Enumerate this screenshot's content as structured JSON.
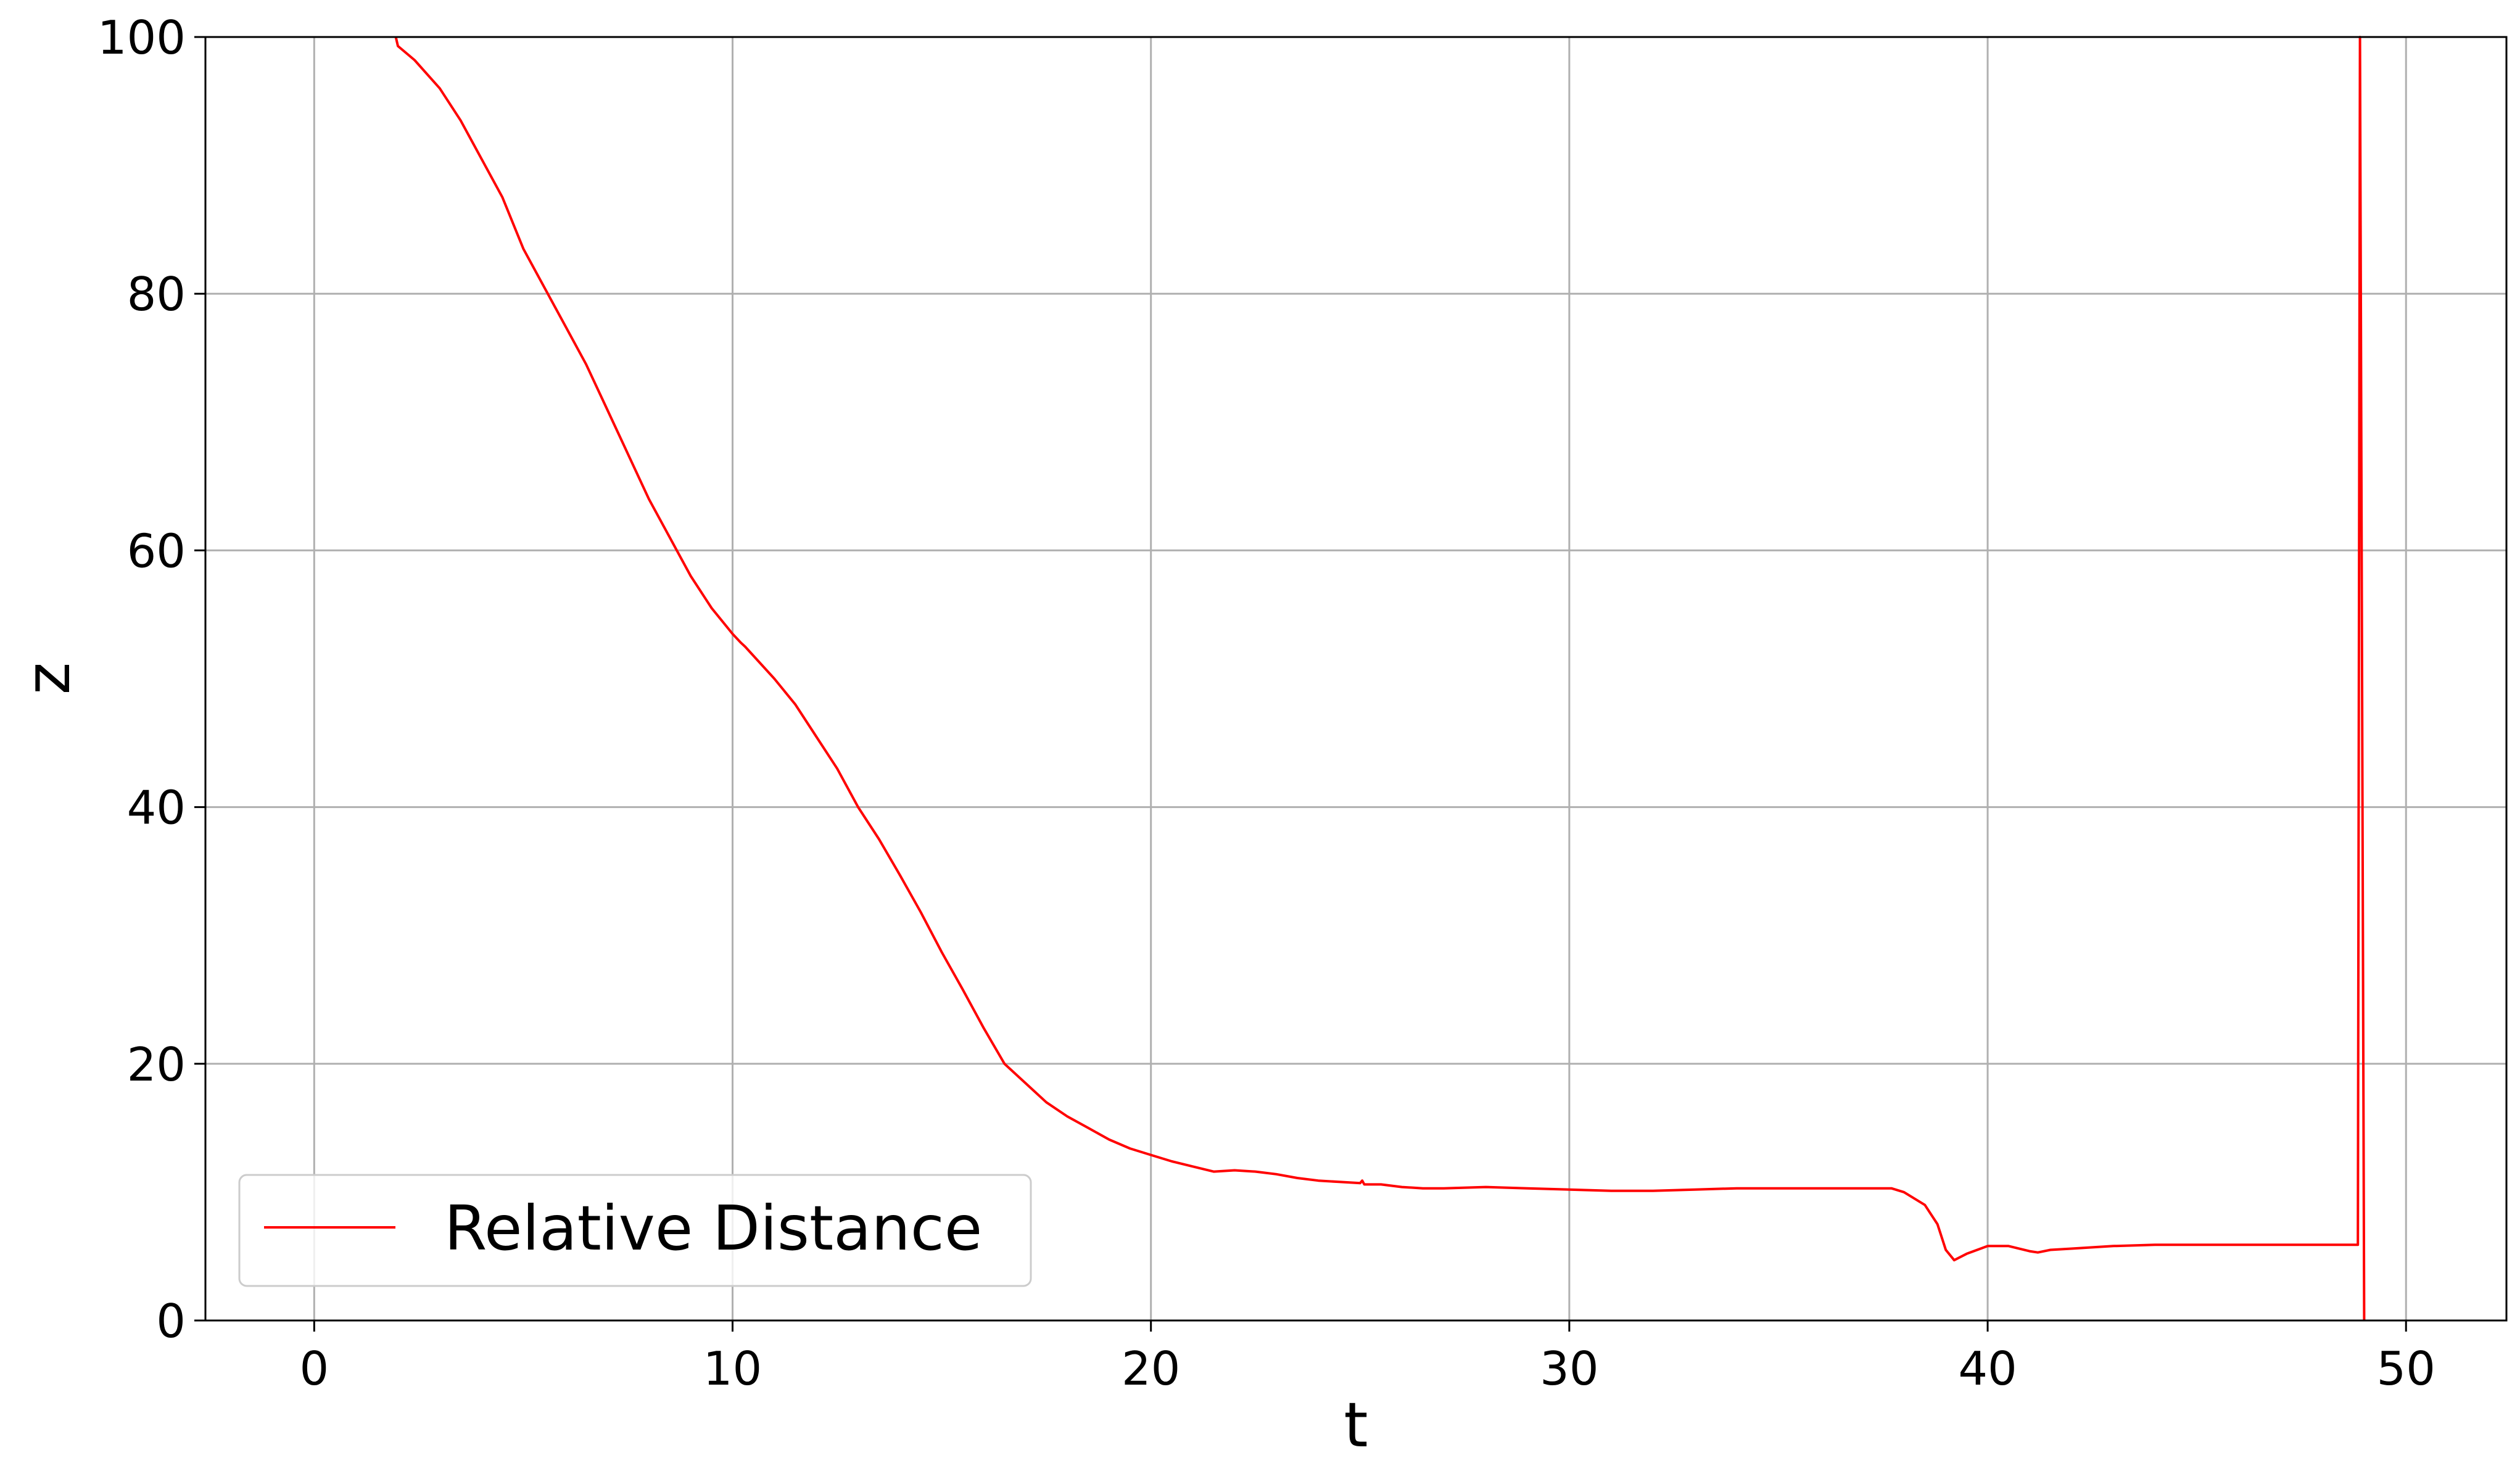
{
  "chart_data": {
    "type": "line",
    "title": "",
    "xlabel": "t",
    "ylabel": "z",
    "xlim": [
      -2.6,
      52.4
    ],
    "ylim": [
      0,
      100
    ],
    "xticks": [
      0,
      10,
      20,
      30,
      40,
      50
    ],
    "yticks": [
      0,
      20,
      40,
      60,
      80,
      100
    ],
    "xtick_labels": [
      "0",
      "10",
      "20",
      "30",
      "40",
      "50"
    ],
    "ytick_labels": [
      "0",
      "20",
      "40",
      "60",
      "80",
      "100"
    ],
    "grid": true,
    "legend_position": "lower-left",
    "series": [
      {
        "name": "Relative Distance",
        "color": "#ff0000",
        "x": [
          1.95,
          2.0,
          2.4,
          3.0,
          3.5,
          4.0,
          4.5,
          5.0,
          5.5,
          6.0,
          6.5,
          7.0,
          7.5,
          8.0,
          8.5,
          9.0,
          9.5,
          10.0,
          10.2,
          10.3,
          11.0,
          11.5,
          12.0,
          12.5,
          13.0,
          13.5,
          14.0,
          14.5,
          15.0,
          15.5,
          16.0,
          16.5,
          17.0,
          17.5,
          18.0,
          18.5,
          19.0,
          19.5,
          20.0,
          20.5,
          21.0,
          21.5,
          22.0,
          22.5,
          23.0,
          23.5,
          24.0,
          24.5,
          25.0,
          25.05,
          25.1,
          25.5,
          26.0,
          26.5,
          27.0,
          28.0,
          29.0,
          30.0,
          31.0,
          32.0,
          33.0,
          34.0,
          35.0,
          36.0,
          37.0,
          37.7,
          38.0,
          38.5,
          38.8,
          39.0,
          39.2,
          39.5,
          40.0,
          40.5,
          41.0,
          41.2,
          41.5,
          42.0,
          42.5,
          43.0,
          44.0,
          45.0,
          46.0,
          47.0,
          48.0,
          48.85,
          48.9,
          48.95,
          49.0
        ],
        "values": [
          100.0,
          99.3,
          98.2,
          96.0,
          93.5,
          90.5,
          87.5,
          83.5,
          80.5,
          77.5,
          74.5,
          71.0,
          67.5,
          64.0,
          61.0,
          58.0,
          55.5,
          53.5,
          52.8,
          52.5,
          50.0,
          48.0,
          45.5,
          43.0,
          40.0,
          37.5,
          34.7,
          31.8,
          28.7,
          25.8,
          22.8,
          20.0,
          18.5,
          17.0,
          15.9,
          15.0,
          14.1,
          13.4,
          12.9,
          12.4,
          12.0,
          11.6,
          11.7,
          11.6,
          11.4,
          11.1,
          10.9,
          10.8,
          10.7,
          10.9,
          10.6,
          10.6,
          10.4,
          10.3,
          10.3,
          10.4,
          10.3,
          10.2,
          10.1,
          10.1,
          10.2,
          10.3,
          10.3,
          10.3,
          10.3,
          10.3,
          10.0,
          9.0,
          7.5,
          5.5,
          4.7,
          5.2,
          5.8,
          5.8,
          5.4,
          5.3,
          5.5,
          5.6,
          5.7,
          5.8,
          5.9,
          5.9,
          5.9,
          5.9,
          5.9,
          5.9,
          100.0,
          50.0,
          0.0
        ]
      }
    ]
  }
}
